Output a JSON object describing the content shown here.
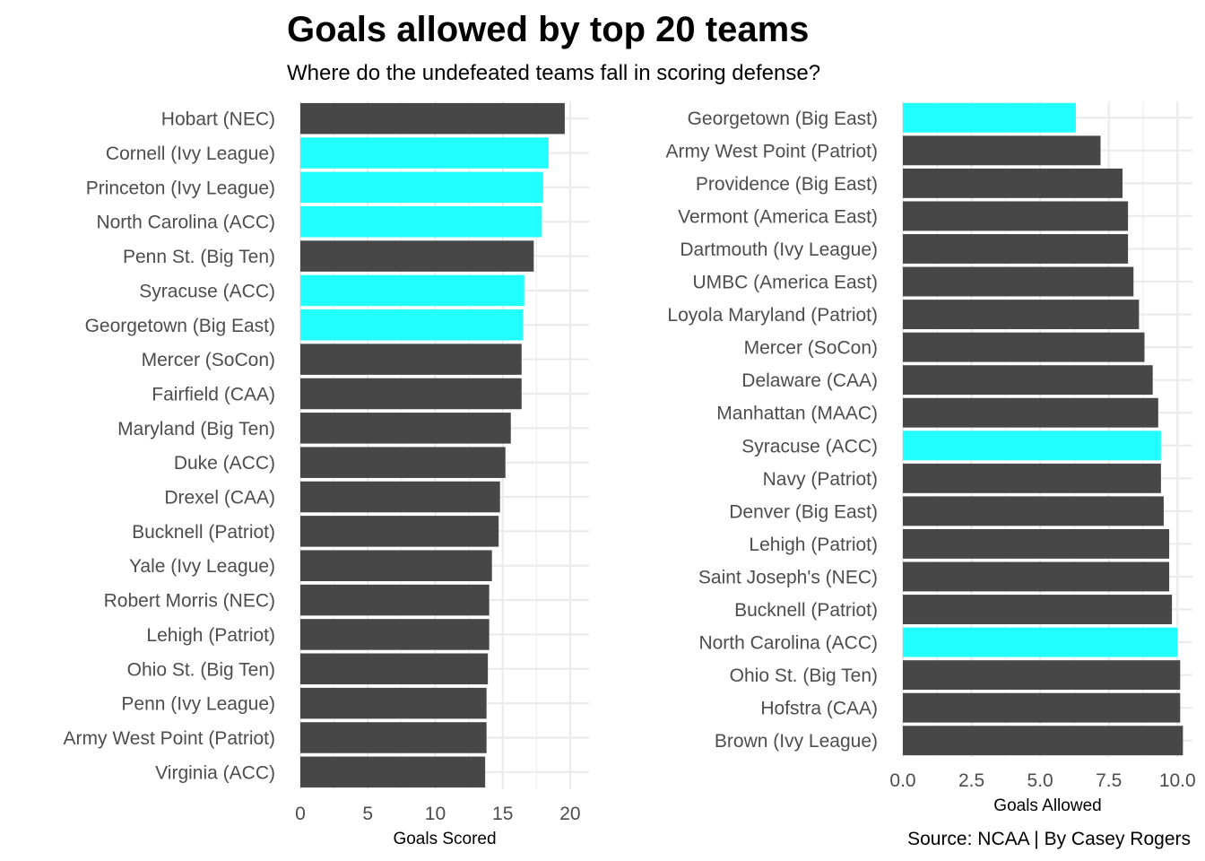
{
  "title": "Goals allowed by top 20 teams",
  "subtitle": "Where do the undefeated teams fall in scoring defense?",
  "caption": "Source: NCAA | By Casey Rogers",
  "colors": {
    "highlight": "#22FFFF",
    "default": "#474747",
    "grid": "#EBEBEB"
  },
  "chart_data": [
    {
      "type": "bar",
      "orientation": "horizontal",
      "xlabel": "Goals Scored",
      "xlim": [
        0,
        20
      ],
      "ticks": [
        0,
        5,
        10,
        15,
        20
      ],
      "tick_labels": [
        "0",
        "5",
        "10",
        "15",
        "20"
      ],
      "grid": true,
      "categories": [
        "Hobart (NEC)",
        "Cornell (Ivy League)",
        "Princeton (Ivy League)",
        "North Carolina (ACC)",
        "Penn St. (Big Ten)",
        "Syracuse (ACC)",
        "Georgetown (Big East)",
        "Mercer (SoCon)",
        "Fairfield (CAA)",
        "Maryland (Big Ten)",
        "Duke (ACC)",
        "Drexel (CAA)",
        "Bucknell (Patriot)",
        "Yale (Ivy League)",
        "Robert Morris (NEC)",
        "Lehigh (Patriot)",
        "Ohio St. (Big Ten)",
        "Penn (Ivy League)",
        "Army West Point (Patriot)",
        "Virginia (ACC)"
      ],
      "values": [
        19.6,
        18.4,
        18.0,
        17.9,
        17.3,
        16.6,
        16.5,
        16.4,
        16.4,
        15.6,
        15.2,
        14.8,
        14.7,
        14.2,
        14.0,
        14.0,
        13.9,
        13.8,
        13.8,
        13.7
      ],
      "highlighted": [
        false,
        true,
        true,
        true,
        false,
        true,
        true,
        false,
        false,
        false,
        false,
        false,
        false,
        false,
        false,
        false,
        false,
        false,
        false,
        false
      ]
    },
    {
      "type": "bar",
      "orientation": "horizontal",
      "xlabel": "Goals Allowed",
      "xlim": [
        0,
        10.2
      ],
      "ticks": [
        0,
        2.5,
        5,
        7.5,
        10
      ],
      "tick_labels": [
        "0.0",
        "2.5",
        "5.0",
        "7.5",
        "10.0"
      ],
      "grid": true,
      "categories": [
        "Georgetown (Big East)",
        "Army West Point (Patriot)",
        "Providence (Big East)",
        "Vermont (America East)",
        "Dartmouth (Ivy League)",
        "UMBC (America East)",
        "Loyola Maryland (Patriot)",
        "Mercer (SoCon)",
        "Delaware (CAA)",
        "Manhattan (MAAC)",
        "Syracuse (ACC)",
        "Navy (Patriot)",
        "Denver (Big East)",
        "Lehigh (Patriot)",
        "Saint Joseph's (NEC)",
        "Bucknell (Patriot)",
        "North Carolina (ACC)",
        "Ohio St. (Big Ten)",
        "Hofstra (CAA)",
        "Brown (Ivy League)"
      ],
      "values": [
        6.3,
        7.2,
        8.0,
        8.2,
        8.2,
        8.4,
        8.6,
        8.8,
        9.1,
        9.3,
        9.4,
        9.4,
        9.5,
        9.7,
        9.7,
        9.8,
        10.0,
        10.1,
        10.1,
        10.2
      ],
      "highlighted": [
        true,
        false,
        false,
        false,
        false,
        false,
        false,
        false,
        false,
        false,
        true,
        false,
        false,
        false,
        false,
        false,
        true,
        false,
        false,
        false
      ]
    }
  ]
}
